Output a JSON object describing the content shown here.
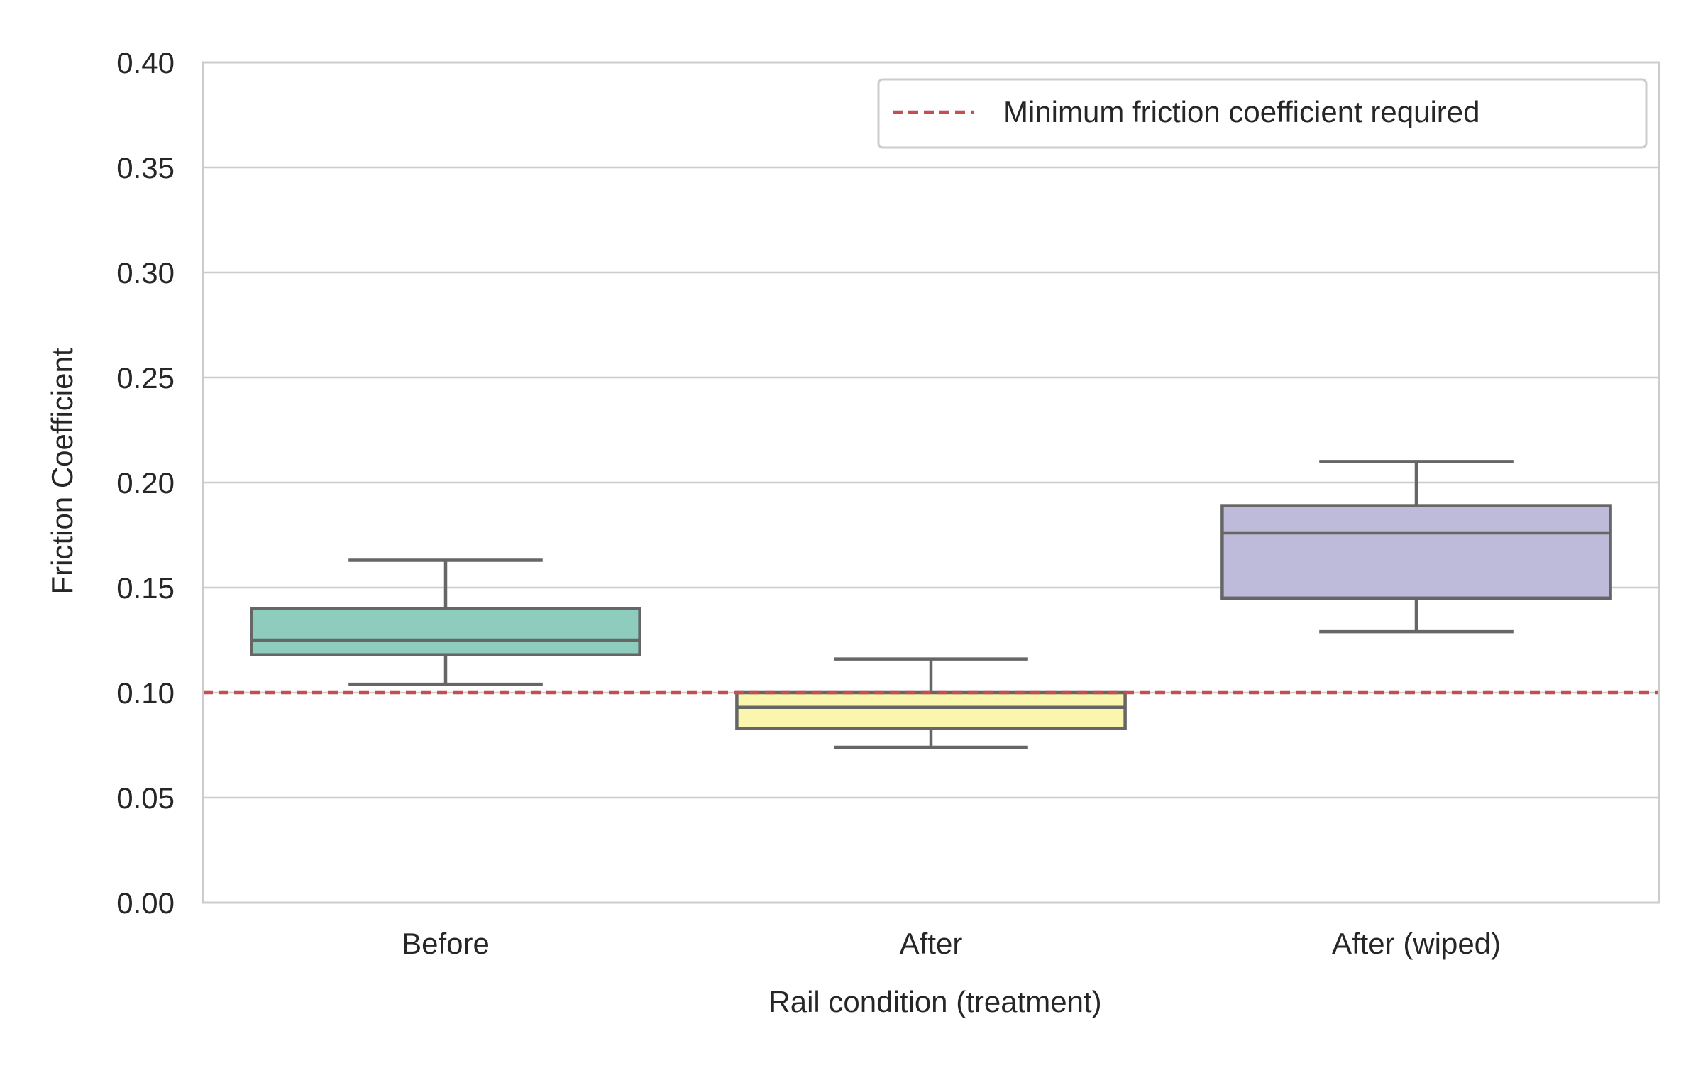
{
  "chart_data": {
    "type": "box",
    "title": "",
    "xlabel": "Rail condition (treatment)",
    "ylabel": "Friction Coefficient",
    "ylim": [
      0,
      0.4
    ],
    "yticks": [
      "0.00",
      "0.05",
      "0.10",
      "0.15",
      "0.20",
      "0.25",
      "0.30",
      "0.35",
      "0.40"
    ],
    "ytick_values": [
      0,
      0.05,
      0.1,
      0.15,
      0.2,
      0.25,
      0.3,
      0.35,
      0.4
    ],
    "categories": [
      "Before",
      "After",
      "After (wiped)"
    ],
    "boxes": [
      {
        "category": "Before",
        "whisker_low": 0.104,
        "q1": 0.118,
        "median": 0.125,
        "q3": 0.14,
        "whisker_high": 0.163,
        "color": "#8ecdbd"
      },
      {
        "category": "After",
        "whisker_low": 0.074,
        "q1": 0.083,
        "median": 0.093,
        "q3": 0.1,
        "whisker_high": 0.116,
        "color": "#fbf6ae"
      },
      {
        "category": "After (wiped)",
        "whisker_low": 0.129,
        "q1": 0.145,
        "median": 0.176,
        "q3": 0.189,
        "whisker_high": 0.21,
        "color": "#bebad9"
      }
    ],
    "reference_line": {
      "y": 0.1,
      "label": "Minimum friction coefficient required",
      "color": "#c44e52",
      "style": "dashed"
    },
    "grid": "horizontal",
    "legend_position": "top-right",
    "colors": {
      "box_edge": "#666666",
      "grid": "#cccccc",
      "spine": "#cccccc",
      "text": "#262626"
    }
  }
}
